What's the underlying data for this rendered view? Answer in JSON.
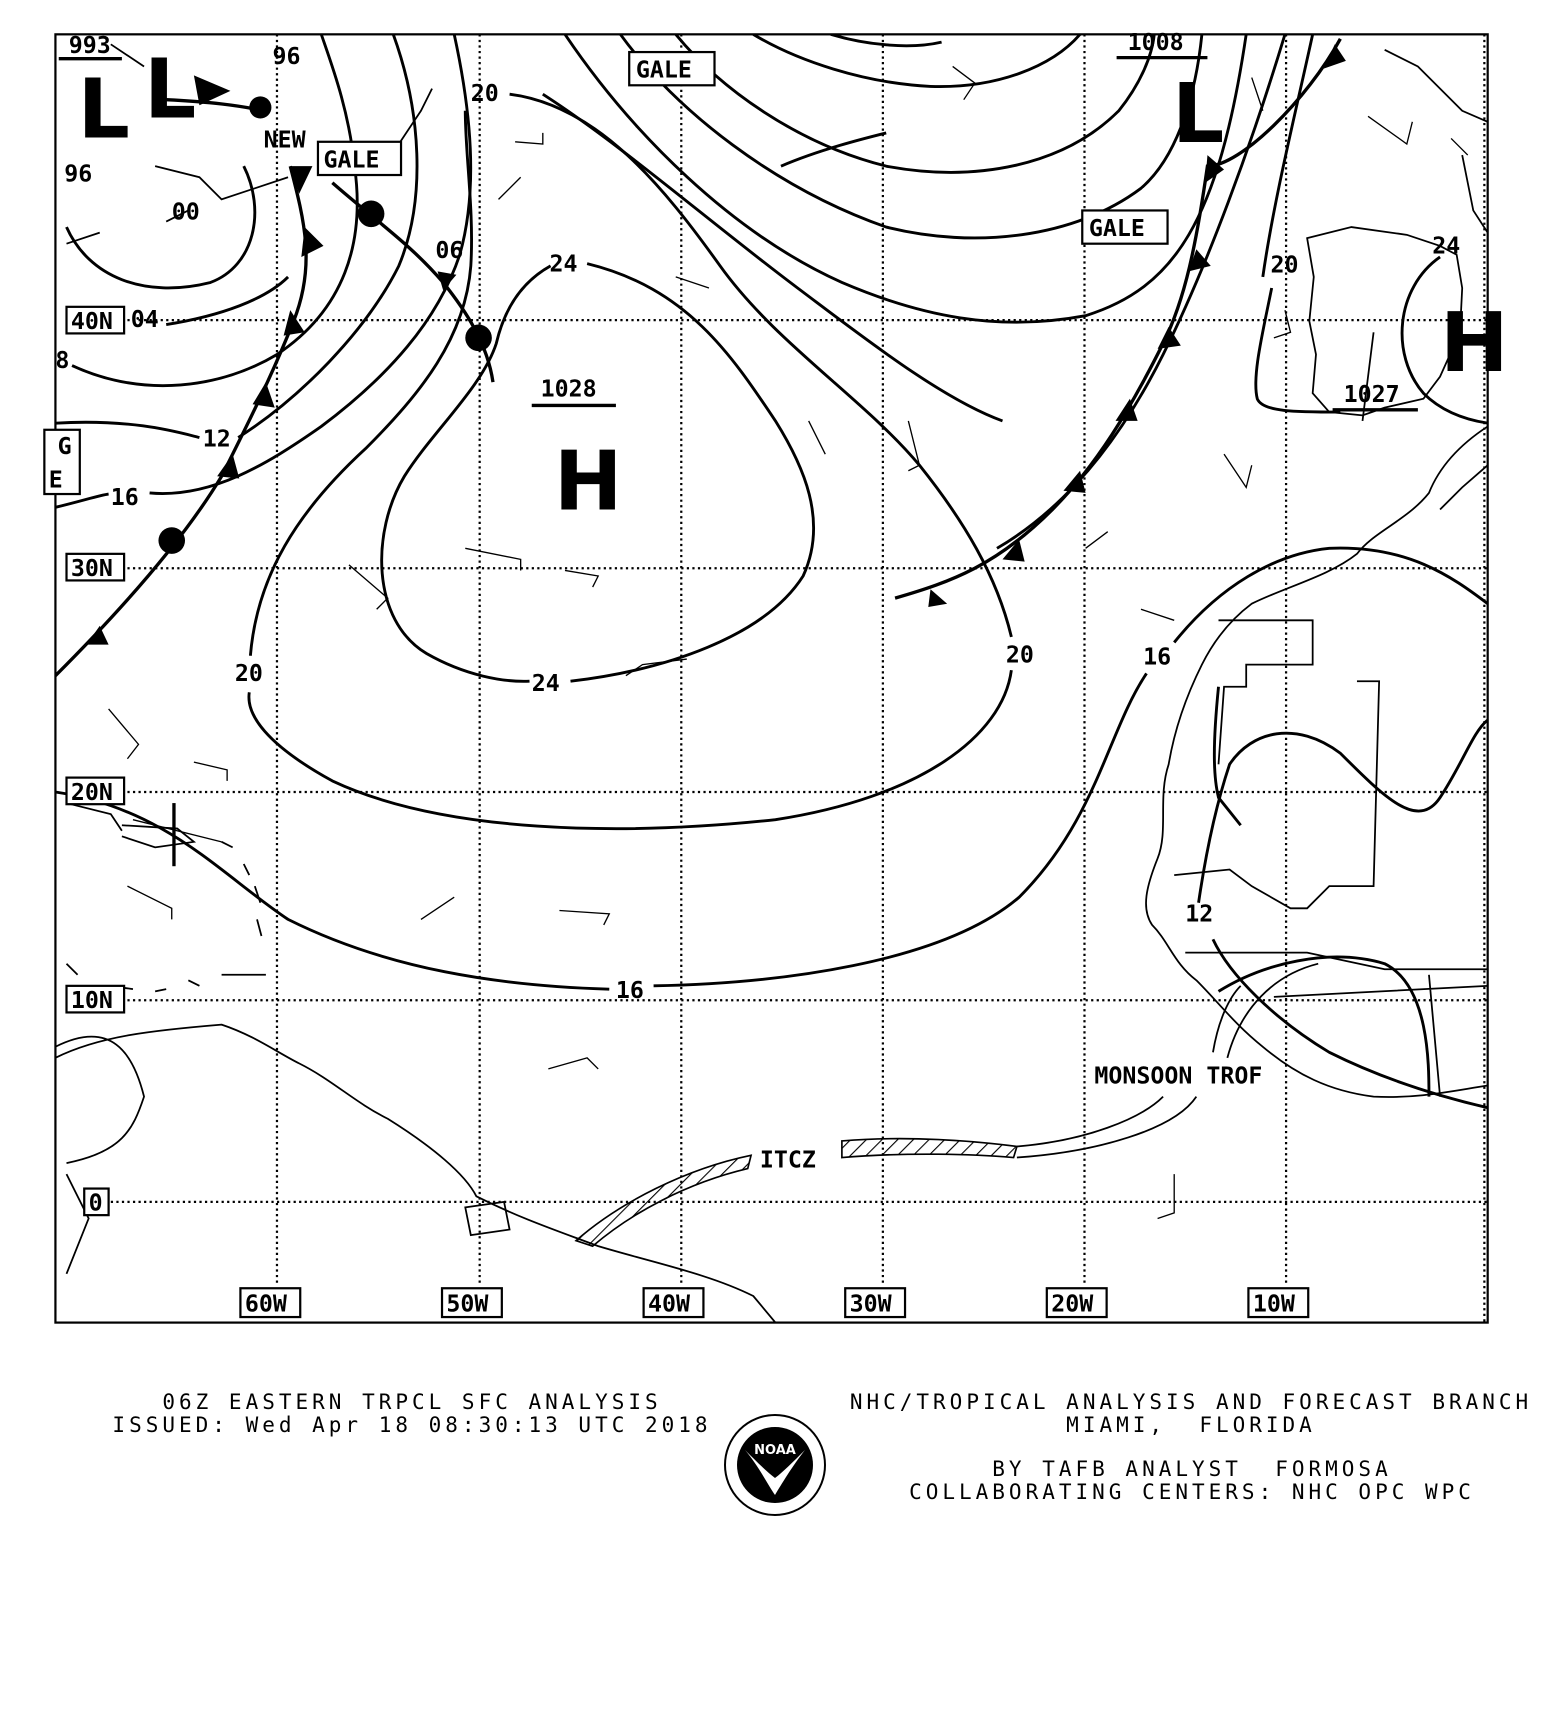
{
  "map": {
    "lat_labels": {
      "n40": "40N",
      "n30": "30N",
      "n20": "20N",
      "n10": "10N",
      "eq": "0"
    },
    "lon_labels": {
      "w60": "60W",
      "w50": "50W",
      "w40": "40W",
      "w30": "30W",
      "w20": "20W",
      "w10": "10W"
    },
    "pressure_centers": {
      "low_nw_1": "L",
      "low_nw_2": "L",
      "low_ne": "L",
      "high_central": "H",
      "high_iberia": "H",
      "low_nw_value": "993",
      "low_ne_value": "1008",
      "high_central_value": "1028",
      "high_iberia_value": "1027"
    },
    "isobar_labels": {
      "nw_96a": "96",
      "nw_96b": "96",
      "nw_00": "00",
      "nw_04": "04",
      "nw_06": "06",
      "nw_08": "8",
      "nw_12": "12",
      "nw_16": "16",
      "c_20_top": "20",
      "c_24_top": "24",
      "c_20_left": "20",
      "c_24_bottom": "24",
      "c_20_right": "20",
      "c_16_south": "16",
      "af_16": "16",
      "af_12": "12",
      "ib_20": "20",
      "ib_24": "24"
    },
    "annotations": {
      "gale_1": "GALE",
      "gale_2": "GALE",
      "gale_3": "GALE",
      "gale_partial_g": "G",
      "gale_partial_e": "E",
      "new": "NEW",
      "itcz": "ITCZ",
      "monsoon_trof": "MONSOON TROF"
    }
  },
  "footer": {
    "title": "06Z EASTERN TRPCL SFC ANALYSIS",
    "issued": "ISSUED: Wed Apr 18 08:30:13 UTC 2018",
    "office": "NHC/TROPICAL ANALYSIS AND FORECAST BRANCH",
    "location": "MIAMI,  FLORIDA",
    "analyst": "BY TAFB ANALYST  FORMOSA",
    "centers": "COLLABORATING CENTERS: NHC OPC WPC",
    "logo_text": "NOAA"
  }
}
